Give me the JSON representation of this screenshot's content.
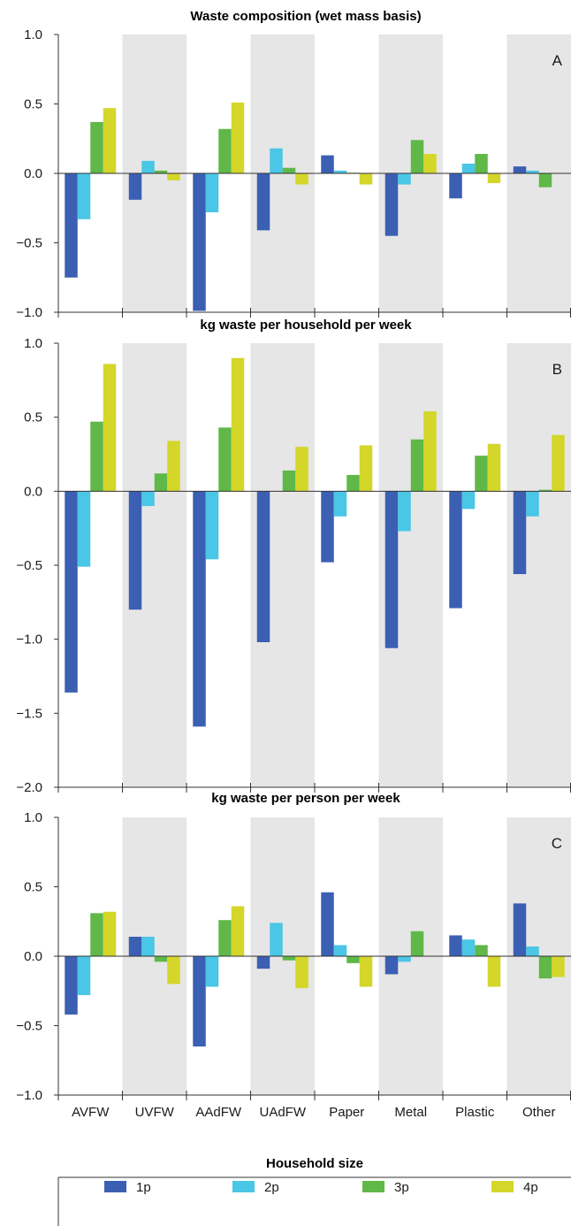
{
  "legend": {
    "title": "Household size"
  },
  "chart_data": [
    {
      "type": "bar",
      "title": "Waste composition (wet mass basis)",
      "panel_label": "A",
      "categories": [
        "AVFW",
        "UVFW",
        "AAdFW",
        "UAdFW",
        "Paper",
        "Metal",
        "Plastic",
        "Other"
      ],
      "shaded_categories": [
        "UVFW",
        "UAdFW",
        "Metal",
        "Other"
      ],
      "ylim": [
        -1.0,
        1.0
      ],
      "yticks": [
        "1.0",
        "0.5",
        "0.0",
        "−0.5",
        "−1.0"
      ],
      "ytick_values": [
        1.0,
        0.5,
        0.0,
        -0.5,
        -1.0
      ],
      "series": [
        {
          "name": "1p",
          "color": "#3b5fb3",
          "values": [
            -0.75,
            -0.19,
            -0.99,
            -0.41,
            0.13,
            -0.45,
            -0.18,
            0.05
          ]
        },
        {
          "name": "2p",
          "color": "#4ac6e6",
          "values": [
            -0.33,
            0.09,
            -0.28,
            0.18,
            0.02,
            -0.08,
            0.07,
            0.02
          ]
        },
        {
          "name": "3p",
          "color": "#5fb847",
          "values": [
            0.37,
            0.02,
            0.32,
            0.04,
            0.005,
            0.24,
            0.14,
            -0.1
          ]
        },
        {
          "name": "4p",
          "color": "#d4d62a",
          "values": [
            0.47,
            -0.05,
            0.51,
            -0.08,
            -0.08,
            0.14,
            -0.07,
            0.0
          ]
        }
      ]
    },
    {
      "type": "bar",
      "title": "kg waste per household per week",
      "panel_label": "B",
      "categories": [
        "AVFW",
        "UVFW",
        "AAdFW",
        "UAdFW",
        "Paper",
        "Metal",
        "Plastic",
        "Other"
      ],
      "shaded_categories": [
        "UVFW",
        "UAdFW",
        "Metal",
        "Other"
      ],
      "ylim": [
        -2.0,
        1.0
      ],
      "yticks": [
        "1.0",
        "0.5",
        "0.0",
        "−0.5",
        "−1.0",
        "−1.5",
        "−2.0"
      ],
      "ytick_values": [
        1.0,
        0.5,
        0.0,
        -0.5,
        -1.0,
        -1.5,
        -2.0
      ],
      "series": [
        {
          "name": "1p",
          "color": "#3b5fb3",
          "values": [
            -1.36,
            -0.8,
            -1.59,
            -1.02,
            -0.48,
            -1.06,
            -0.79,
            -0.56
          ]
        },
        {
          "name": "2p",
          "color": "#4ac6e6",
          "values": [
            -0.51,
            -0.1,
            -0.46,
            0.0,
            -0.17,
            -0.27,
            -0.12,
            -0.17
          ]
        },
        {
          "name": "3p",
          "color": "#5fb847",
          "values": [
            0.47,
            0.12,
            0.43,
            0.14,
            0.11,
            0.35,
            0.24,
            0.01
          ]
        },
        {
          "name": "4p",
          "color": "#d4d62a",
          "values": [
            0.86,
            0.34,
            0.9,
            0.3,
            0.31,
            0.54,
            0.32,
            0.38
          ]
        }
      ]
    },
    {
      "type": "bar",
      "title": "kg waste per person per week",
      "panel_label": "C",
      "categories": [
        "AVFW",
        "UVFW",
        "AAdFW",
        "UAdFW",
        "Paper",
        "Metal",
        "Plastic",
        "Other"
      ],
      "shaded_categories": [
        "UVFW",
        "UAdFW",
        "Metal",
        "Other"
      ],
      "ylim": [
        -1.0,
        1.0
      ],
      "yticks": [
        "1.0",
        "0.5",
        "0.0",
        "−0.5",
        "−1.0"
      ],
      "ytick_values": [
        1.0,
        0.5,
        0.0,
        -0.5,
        -1.0
      ],
      "series": [
        {
          "name": "1p",
          "color": "#3b5fb3",
          "values": [
            -0.42,
            0.14,
            -0.65,
            -0.09,
            0.46,
            -0.13,
            0.15,
            0.38
          ]
        },
        {
          "name": "2p",
          "color": "#4ac6e6",
          "values": [
            -0.28,
            0.14,
            -0.22,
            0.24,
            0.08,
            -0.04,
            0.12,
            0.07
          ]
        },
        {
          "name": "3p",
          "color": "#5fb847",
          "values": [
            0.31,
            -0.04,
            0.26,
            -0.03,
            -0.05,
            0.18,
            0.08,
            -0.16
          ]
        },
        {
          "name": "4p",
          "color": "#d4d62a",
          "values": [
            0.32,
            -0.2,
            0.36,
            -0.23,
            -0.22,
            0.0,
            -0.22,
            -0.15
          ]
        }
      ]
    }
  ]
}
